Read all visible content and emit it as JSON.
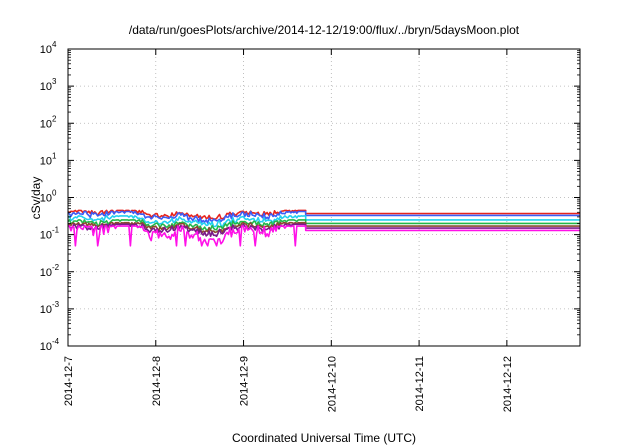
{
  "chart_data": {
    "type": "line",
    "title": "/data/run/goesPlots/archive/2014-12-12/19:00/flux/../bryn/5daysMoon.plot",
    "xlabel": "Coordinated Universal Time (UTC)",
    "ylabel": "cSv/day",
    "xscale": "time",
    "yscale": "log",
    "grid": true,
    "legend": "none",
    "xlim": [
      "2014-12-07",
      "2014-12-12T20:00"
    ],
    "ylim": [
      0.0001,
      10000
    ],
    "x_ticks": [
      "2014-12-7",
      "2014-12-8",
      "2014-12-9",
      "2014-12-10",
      "2014-12-11",
      "2014-12-12"
    ],
    "y_ticks": [
      {
        "base": "10",
        "exp": "4",
        "value": 10000
      },
      {
        "base": "10",
        "exp": "3",
        "value": 1000
      },
      {
        "base": "10",
        "exp": "2",
        "value": 100
      },
      {
        "base": "10",
        "exp": "1",
        "value": 10
      },
      {
        "base": "10",
        "exp": "0",
        "value": 1
      },
      {
        "base": "10",
        "exp": "-1",
        "value": 0.1
      },
      {
        "base": "10",
        "exp": "-2",
        "value": 0.01
      },
      {
        "base": "10",
        "exp": "-3",
        "value": 0.001
      },
      {
        "base": "10",
        "exp": "-4",
        "value": 0.0001
      }
    ],
    "data_end": "2014-12-09T17:00",
    "series": [
      {
        "color": "#e8241c",
        "level": 0.37,
        "min": 0.25,
        "max": 0.45
      },
      {
        "color": "#3c5cf5",
        "level": 0.33,
        "min": 0.2,
        "max": 0.42
      },
      {
        "color": "#22d0f0",
        "level": 0.25,
        "min": 0.16,
        "max": 0.32
      },
      {
        "color": "#22b84a",
        "level": 0.2,
        "min": 0.13,
        "max": 0.25
      },
      {
        "color": "#8a4a2e",
        "level": 0.17,
        "min": 0.11,
        "max": 0.21
      },
      {
        "color": "#7a1a8a",
        "level": 0.15,
        "min": 0.09,
        "max": 0.19
      },
      {
        "color": "#ff10e8",
        "level": 0.13,
        "min": 0.05,
        "max": 0.17
      }
    ]
  }
}
